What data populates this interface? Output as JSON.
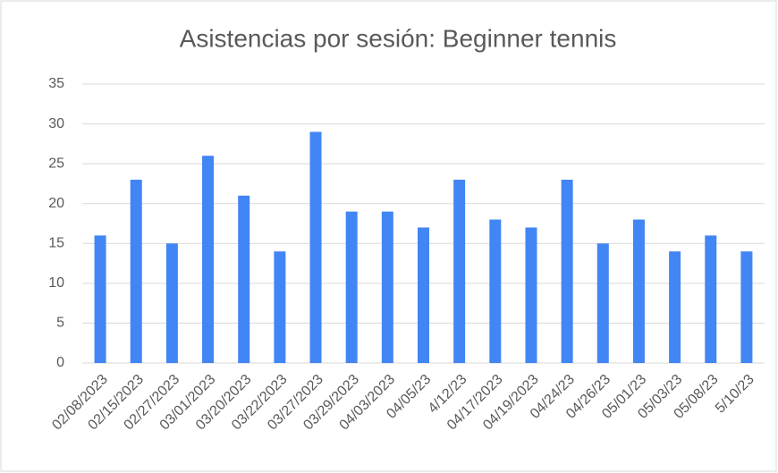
{
  "chart_data": {
    "type": "bar",
    "title": "Asistencias por sesión: Beginner tennis",
    "categories": [
      "02/08/2023",
      "02/15/2023",
      "02/27/2023",
      "03/01/2023",
      "03/20/2023",
      "03/22/2023",
      "03/27/2023",
      "03/29/2023",
      "04/03/2023",
      "04/05/23",
      "4/12/23",
      "04/17/2023",
      "04/19/2023",
      "04/24/23",
      "04/26/23",
      "05/01/23",
      "05/03/23",
      "05/08/23",
      "5/10/23"
    ],
    "values": [
      16,
      23,
      15,
      26,
      21,
      14,
      29,
      19,
      19,
      17,
      23,
      18,
      17,
      23,
      15,
      18,
      14,
      16,
      14
    ],
    "color": "#4285f4",
    "ylim": [
      0,
      35
    ],
    "yticks": [
      0,
      5,
      10,
      15,
      20,
      25,
      30,
      35
    ],
    "grid": true
  }
}
